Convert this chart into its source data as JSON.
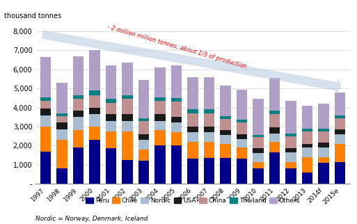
{
  "years": [
    "1997",
    "1998",
    "1999",
    "2000",
    "2001",
    "2002",
    "2003",
    "2004",
    "2005",
    "2006",
    "2007",
    "2008",
    "2009",
    "2010",
    "2011",
    "2012",
    "2013",
    "2014f",
    "2015e"
  ],
  "Peru": [
    1700,
    800,
    1900,
    2300,
    1850,
    1250,
    1200,
    2000,
    2000,
    1300,
    1350,
    1350,
    1300,
    800,
    1650,
    800,
    600,
    1100,
    1150
  ],
  "Chile": [
    1300,
    1500,
    900,
    700,
    900,
    1500,
    600,
    800,
    700,
    900,
    850,
    750,
    600,
    350,
    550,
    350,
    800,
    300,
    950
  ],
  "Nordic": [
    600,
    550,
    700,
    650,
    550,
    550,
    500,
    500,
    500,
    500,
    500,
    450,
    450,
    450,
    450,
    500,
    500,
    500,
    500
  ],
  "USA": [
    350,
    350,
    350,
    350,
    350,
    350,
    300,
    350,
    300,
    300,
    300,
    250,
    250,
    250,
    300,
    200,
    200,
    250,
    250
  ],
  "China": [
    400,
    350,
    600,
    650,
    600,
    800,
    700,
    700,
    800,
    700,
    700,
    600,
    600,
    600,
    700,
    650,
    650,
    600,
    600
  ],
  "Thailand": [
    200,
    150,
    200,
    250,
    200,
    200,
    150,
    200,
    200,
    200,
    200,
    150,
    150,
    100,
    200,
    150,
    150,
    150,
    150
  ],
  "Others": [
    2100,
    1600,
    2020,
    2100,
    1750,
    1700,
    2000,
    1550,
    1700,
    1700,
    1700,
    1600,
    1600,
    1900,
    1700,
    1700,
    1200,
    1300,
    1200
  ],
  "colors": {
    "Peru": "#00008B",
    "Chile": "#FF7F00",
    "Nordic": "#A8BED0",
    "USA": "#1A1A1A",
    "China": "#C09090",
    "Thailand": "#008080",
    "Others": "#B0A0C8"
  },
  "ylabel": "thousand tonnes",
  "ylim": [
    0,
    8000
  ],
  "yticks": [
    0,
    1000,
    2000,
    3000,
    4000,
    5000,
    6000,
    7000,
    8000
  ],
  "ytick_labels": [
    "-",
    "1,000",
    "2,000",
    "3,000",
    "4,000",
    "5,000",
    "6,000",
    "7,000",
    "8,000"
  ],
  "arrow_text": "- 2 million million tonnes, about 1/3 of production",
  "footnote": "Nordic = Norway, Denmark, Iceland",
  "legend_order": [
    "Peru",
    "Chile",
    "Nordic",
    "USA",
    "China",
    "Thailand",
    "Others"
  ]
}
